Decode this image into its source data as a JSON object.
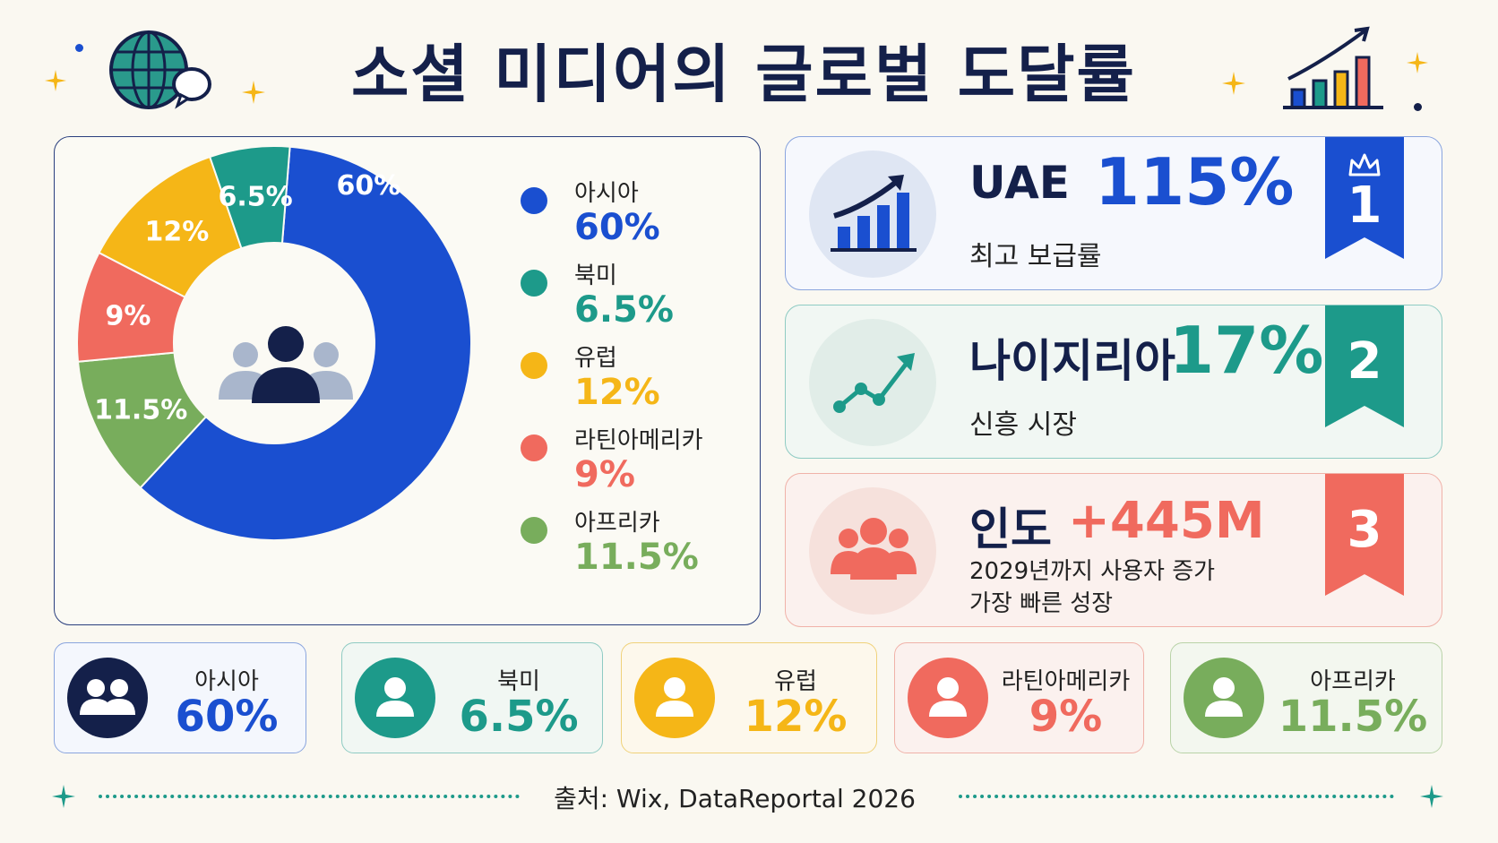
{
  "title": "소셜 미디어의 글로벌 도달률",
  "colors": {
    "asia": "#1a4fd0",
    "north_america": "#1d9a8a",
    "europe": "#f5b617",
    "latin_america": "#f06a5e",
    "africa": "#78ad5c",
    "navy": "#14204a"
  },
  "chart_data": {
    "type": "pie",
    "variant": "donut",
    "categories": [
      "아시아",
      "북미",
      "유럽",
      "라틴아메리카",
      "아프리카"
    ],
    "values": [
      60,
      6.5,
      12,
      9,
      11.5
    ],
    "value_labels": [
      "60%",
      "6.5%",
      "12%",
      "9%",
      "11.5%"
    ],
    "center_icon": "users-icon",
    "legend": [
      {
        "name": "아시아",
        "value": "60%"
      },
      {
        "name": "북미",
        "value": "6.5%"
      },
      {
        "name": "유럽",
        "value": "12%"
      },
      {
        "name": "라틴아메리카",
        "value": "9%"
      },
      {
        "name": "아프리카",
        "value": "11.5%"
      }
    ]
  },
  "rankings": [
    {
      "rank": "1",
      "title": "UAE",
      "stat": "115%",
      "subtitle": "최고 보급률",
      "icon": "bar-chart-up-icon"
    },
    {
      "rank": "2",
      "title": "나이지리아",
      "stat": "17%",
      "subtitle": "신흥 시장",
      "icon": "trend-line-icon"
    },
    {
      "rank": "3",
      "title": "인도",
      "stat": "+445M",
      "subtitle": "2029년까지 사용자 증가",
      "subtitle2": "가장 빠른 성장",
      "icon": "users-icon"
    }
  ],
  "regions": [
    {
      "name": "아시아",
      "value": "60%",
      "icon": "users-icon"
    },
    {
      "name": "북미",
      "value": "6.5%",
      "icon": "user-icon"
    },
    {
      "name": "유럽",
      "value": "12%",
      "icon": "user-icon"
    },
    {
      "name": "라틴아메리카",
      "value": "9%",
      "icon": "user-icon"
    },
    {
      "name": "아프리카",
      "value": "11.5%",
      "icon": "user-icon"
    }
  ],
  "source": "출처: Wix, DataReportal 2026"
}
